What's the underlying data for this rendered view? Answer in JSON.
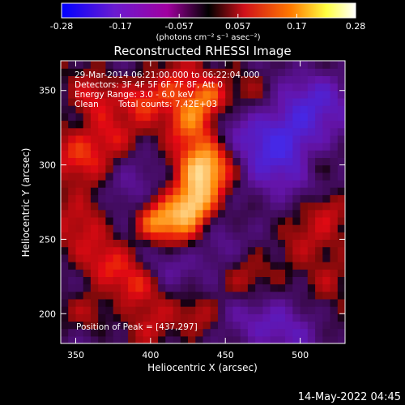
{
  "chart_data": {
    "type": "heatmap",
    "title": "Reconstructed RHESSI Image",
    "xlabel": "Heliocentric X (arcsec)",
    "ylabel": "Heliocentric Y (arcsec)",
    "xlim": [
      340,
      530
    ],
    "ylim": [
      180,
      370
    ],
    "x_ticks": [
      350,
      400,
      450,
      500
    ],
    "y_ticks": [
      200,
      250,
      300,
      350
    ],
    "colorbar": {
      "ticks": [
        "-0.28",
        "-0.17",
        "-0.057",
        "0.057",
        "0.17",
        "0.28"
      ],
      "range": [
        -0.28,
        0.28
      ],
      "unit_label": "(photons cm⁻² s⁻¹ asec⁻²)",
      "colors": [
        "#0000ff",
        "#6a1bd0",
        "#a100a0",
        "#000000",
        "#d0101a",
        "#ff7a00",
        "#ffff40",
        "#ffffff"
      ]
    },
    "peak_position": [
      437,
      297
    ],
    "peak_value": 0.28,
    "annotations": {
      "time": "29-Mar-2014 06:21:00.000 to 06:22:04.000",
      "detectors": "Detectors: 3F 4F 5F 6F 7F 8F, Att 0",
      "energy": "Energy Range: 3.0 - 6.0 keV",
      "clean_label": "Clean",
      "counts": "Total counts: 7.42E+03",
      "peak": "Position of Peak = [437,297]"
    }
  },
  "footer": {
    "date": "14-May-2022 04:45"
  }
}
